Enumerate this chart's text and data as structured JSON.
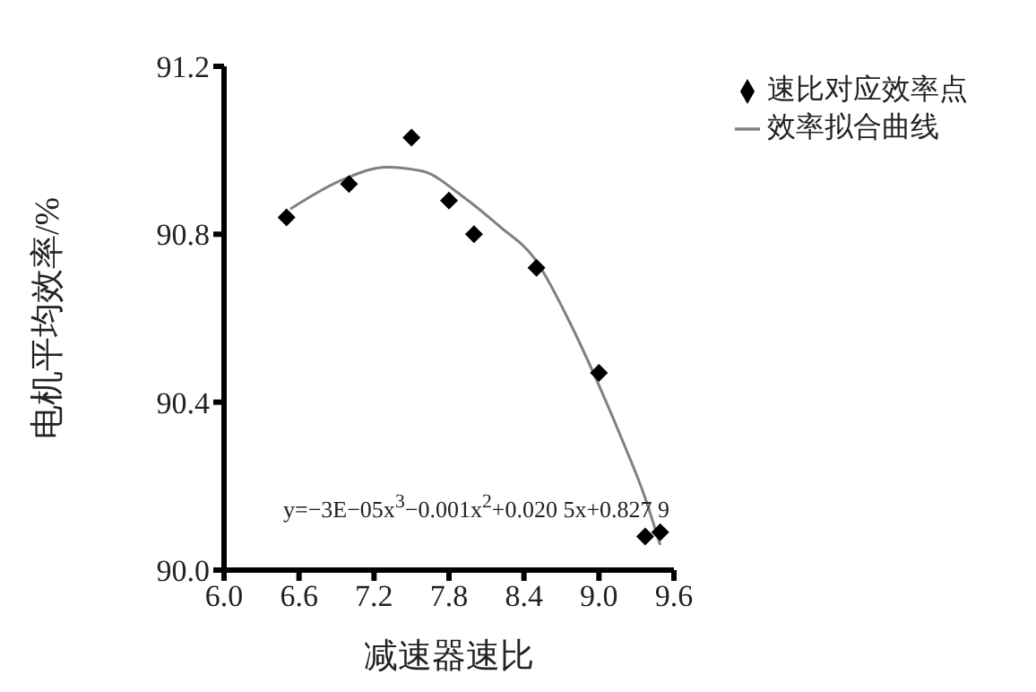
{
  "chart_data": {
    "type": "scatter",
    "xlabel": "减速器速比",
    "ylabel": "电机平均效率/%",
    "xlim": [
      6.0,
      9.6
    ],
    "xticks": [
      {
        "value": 6,
        "label": "6.0"
      },
      {
        "value": 6.6,
        "label": "6.6"
      },
      {
        "value": 7.2,
        "label": "7.2"
      },
      {
        "value": 7.8,
        "label": "7.8"
      },
      {
        "value": 8.4,
        "label": "8.4"
      },
      {
        "value": 9,
        "label": "9.0"
      },
      {
        "value": 9.6,
        "label": "9.6"
      }
    ],
    "ylim": [
      90.0,
      91.2
    ],
    "yticks": [
      {
        "value": 90,
        "label": "90.0"
      },
      {
        "value": 90.4,
        "label": "90.4"
      },
      {
        "value": 90.8,
        "label": "90.8"
      },
      {
        "value": 91.2,
        "label": "91.2"
      }
    ],
    "series": [
      {
        "name": "速比对应效率点",
        "marker": "diamond",
        "color": "#000000",
        "x": [
          6.5,
          7.0,
          7.5,
          7.8,
          8.0,
          8.5,
          9.0,
          9.37,
          9.49
        ],
        "values": [
          90.84,
          90.92,
          91.03,
          90.88,
          90.8,
          90.72,
          90.47,
          90.08,
          90.09
        ]
      },
      {
        "name": "效率拟合曲线",
        "type": "line",
        "marker": "none",
        "line_style": "solid",
        "color": "#808080",
        "x": [
          6.53,
          6.95,
          7.3,
          7.59,
          7.91,
          8.2,
          8.49,
          8.75,
          9.0,
          9.2,
          9.36,
          9.49
        ],
        "values": [
          90.86,
          90.93,
          90.96,
          90.95,
          90.89,
          90.82,
          90.74,
          90.6,
          90.44,
          90.3,
          90.18,
          90.06
        ]
      }
    ],
    "legend": "top right",
    "grid": false,
    "annotations": [
      "y=−3E−05x$^{3}$−0.001x$^{2}$+0.020 5x+0.827 9"
    ]
  }
}
